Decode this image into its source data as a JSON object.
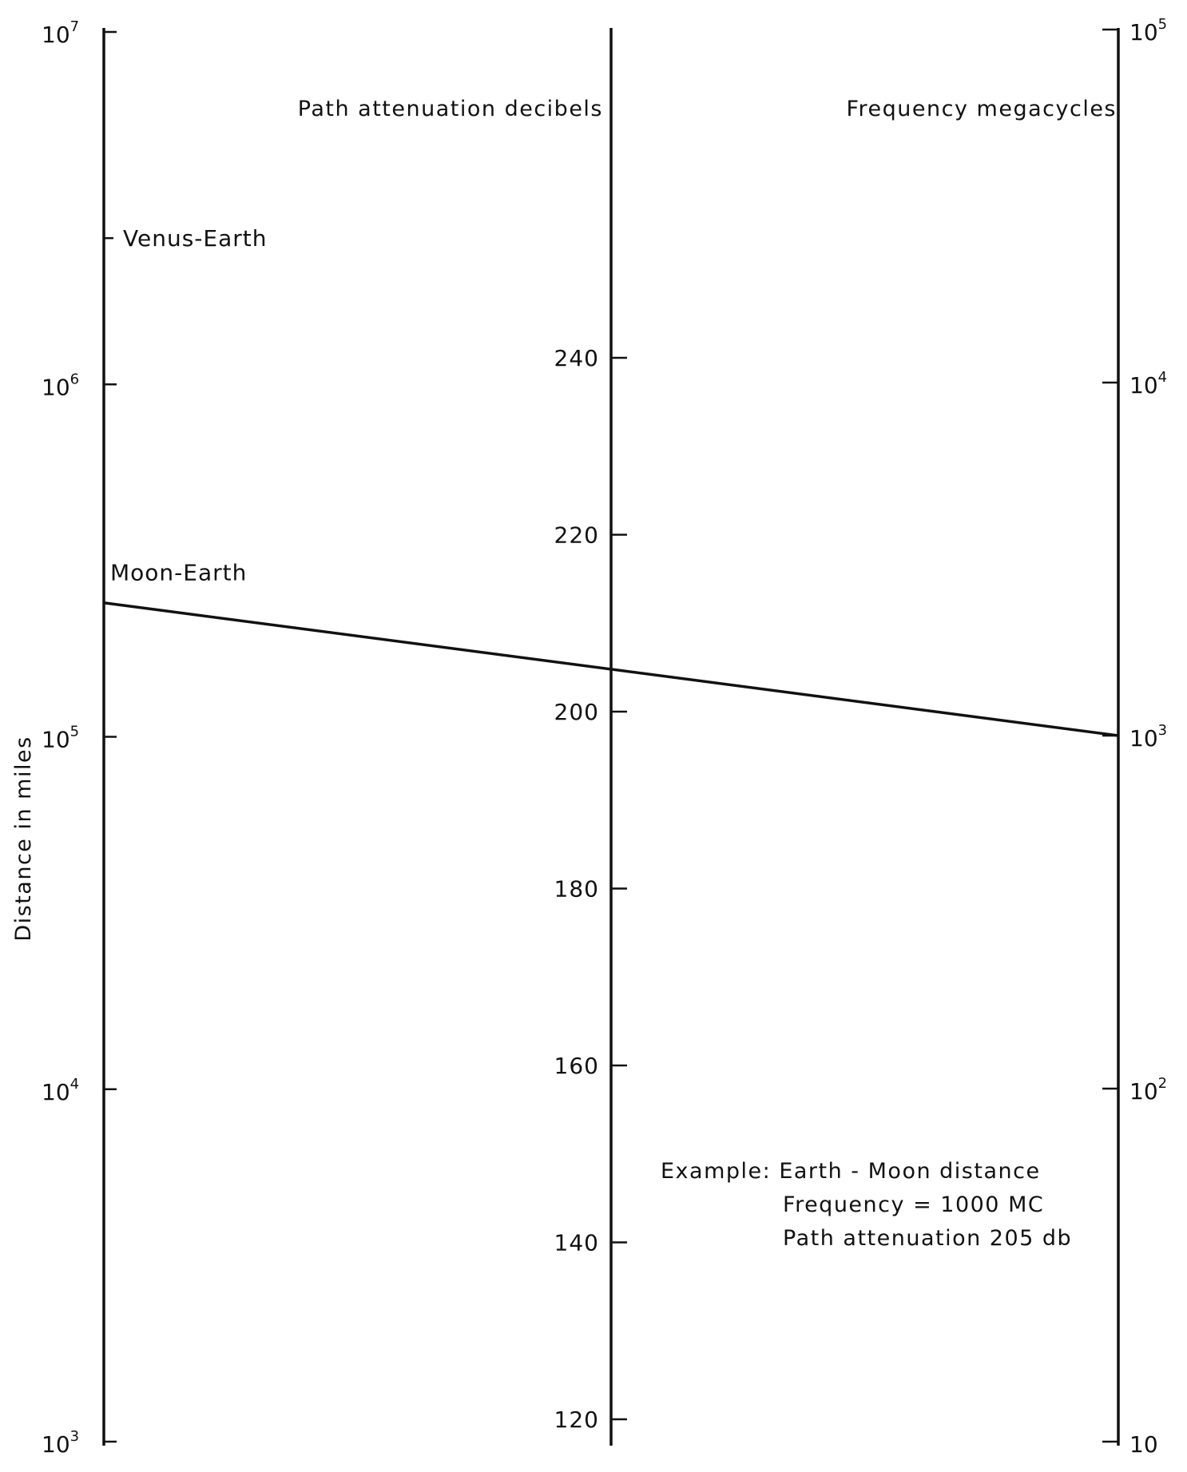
{
  "chart_data": {
    "type": "nomogram",
    "scales": [
      {
        "id": "distance",
        "title": "Distance in miles",
        "scale": "log",
        "range": [
          1000,
          10000000
        ],
        "ticks": [
          {
            "value": 10000000,
            "base": "10",
            "exp": "7"
          },
          {
            "value": 1000000,
            "base": "10",
            "exp": "6"
          },
          {
            "value": 100000,
            "base": "10",
            "exp": "5"
          },
          {
            "value": 10000,
            "base": "10",
            "exp": "4"
          },
          {
            "value": 1000,
            "base": "10",
            "exp": "3"
          }
        ],
        "annotations": [
          {
            "label": "Venus-Earth",
            "value": 2600000
          },
          {
            "label": "Moon-Earth",
            "value": 240000
          }
        ]
      },
      {
        "id": "attenuation",
        "title": "Path attenuation decibels",
        "scale": "linear",
        "ticks": [
          {
            "value": 240,
            "label": "240"
          },
          {
            "value": 220,
            "label": "220"
          },
          {
            "value": 200,
            "label": "200"
          },
          {
            "value": 180,
            "label": "180"
          },
          {
            "value": 160,
            "label": "160"
          },
          {
            "value": 140,
            "label": "140"
          },
          {
            "value": 120,
            "label": "120"
          }
        ]
      },
      {
        "id": "frequency",
        "title": "Frequency megacycles",
        "scale": "log",
        "range": [
          10,
          100000
        ],
        "ticks": [
          {
            "value": 100000,
            "base": "10",
            "exp": "5"
          },
          {
            "value": 10000,
            "base": "10",
            "exp": "4"
          },
          {
            "value": 1000,
            "base": "10",
            "exp": "3"
          },
          {
            "value": 100,
            "base": "10",
            "exp": "2"
          },
          {
            "value": 10,
            "base": "10",
            "exp": ""
          }
        ]
      }
    ],
    "example_line": {
      "distance": 240000,
      "attenuation": 205,
      "frequency": 1000
    },
    "example_text": [
      "Example: Earth - Moon distance",
      "Frequency = 1000 MC",
      "Path attenuation 205 db"
    ]
  }
}
